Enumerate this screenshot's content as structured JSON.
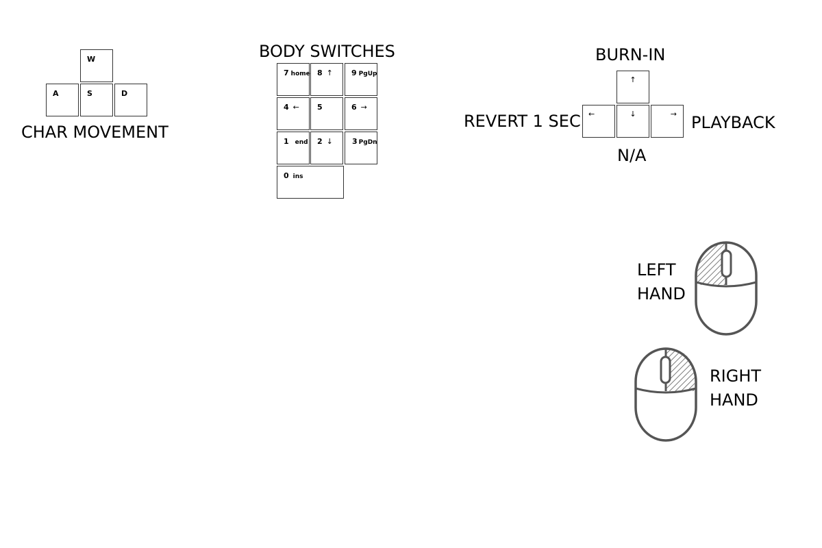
{
  "char_movement": {
    "label": "CHAR MOVEMENT",
    "keys": {
      "w": "W",
      "a": "A",
      "s": "S",
      "d": "D"
    }
  },
  "body_switches": {
    "label": "BODY SWITCHES",
    "keys": [
      {
        "main": "7",
        "sub": "home"
      },
      {
        "main": "8",
        "sub": "↑"
      },
      {
        "main": "9",
        "sub": "PgUp"
      },
      {
        "main": "4",
        "sub": "←"
      },
      {
        "main": "5",
        "sub": ""
      },
      {
        "main": "6",
        "sub": "→"
      },
      {
        "main": "1",
        "sub": "end"
      },
      {
        "main": "2",
        "sub": "↓"
      },
      {
        "main": "3",
        "sub": "PgDn"
      },
      {
        "main": "0",
        "sub": "ins"
      }
    ]
  },
  "arrow_keys": {
    "up_label": "BURN-IN",
    "left_label": "REVERT 1 SEC",
    "right_label": "PLAYBACK",
    "down_label": "N/A",
    "keys": {
      "up": "↑",
      "left": "←",
      "down": "↓",
      "right": "→"
    }
  },
  "mouse": {
    "left_hand_line1": "LEFT",
    "left_hand_line2": "HAND",
    "right_hand_line1": "RIGHT",
    "right_hand_line2": "HAND",
    "stroke_color": "#555555"
  }
}
